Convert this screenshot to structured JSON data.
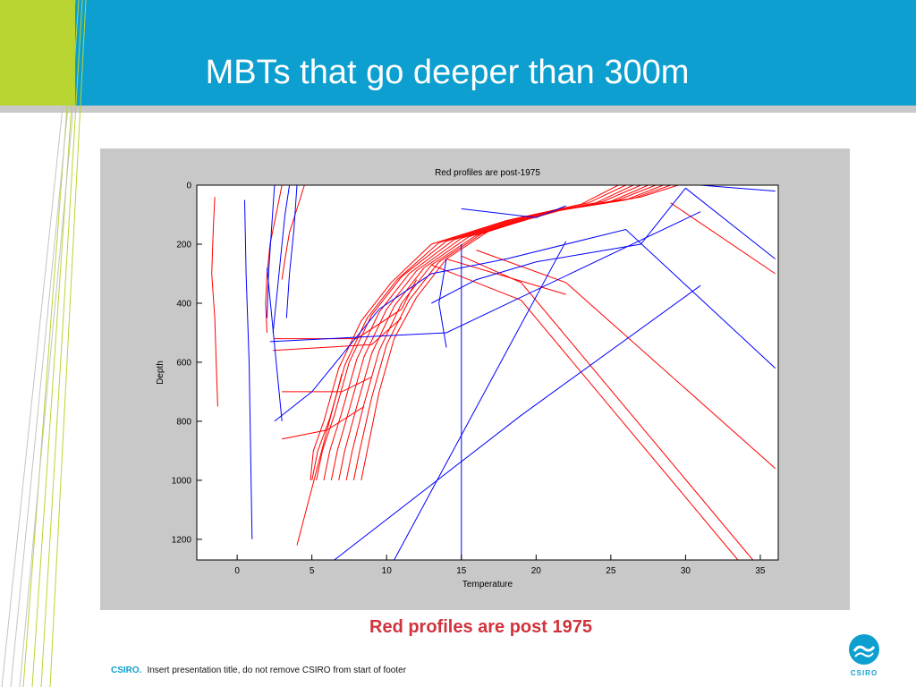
{
  "slide": {
    "title": "MBTs that go deeper than 300m",
    "caption": "Red profiles are post 1975",
    "footer_brand": "CSIRO.",
    "footer_text": "Insert presentation title, do not remove CSIRO from start of footer",
    "logo_text": "CSIRO"
  },
  "colors": {
    "header": "#0d9fcf",
    "accent": "#b9d531",
    "post1975": "#ff0000",
    "pre1975": "#0000ff",
    "caption": "#d0333b"
  },
  "chart_data": {
    "type": "line",
    "title": "Red profiles are post-1975",
    "xlabel": "Temperature",
    "ylabel": "Depth",
    "xlim": [
      -2.7,
      36.2
    ],
    "ylim": [
      1270,
      0
    ],
    "y_reversed": true,
    "xticks": [
      0,
      5,
      10,
      15,
      20,
      25,
      30,
      35
    ],
    "yticks": [
      0,
      200,
      400,
      600,
      800,
      1000,
      1200
    ],
    "grid": false,
    "series": [
      {
        "color": "red",
        "profiles": [
          [
            [
              29.5,
              0
            ],
            [
              27,
              40
            ],
            [
              22,
              80
            ],
            [
              17,
              150
            ],
            [
              14,
              250
            ],
            [
              12,
              380
            ],
            [
              10.5,
              520
            ],
            [
              9.5,
              700
            ],
            [
              8.7,
              900
            ],
            [
              8.3,
              1000
            ]
          ],
          [
            [
              29,
              0
            ],
            [
              26.5,
              45
            ],
            [
              21.5,
              85
            ],
            [
              16.5,
              160
            ],
            [
              13.5,
              260
            ],
            [
              11.5,
              390
            ],
            [
              10,
              540
            ],
            [
              9,
              720
            ],
            [
              8.2,
              900
            ],
            [
              7.8,
              1000
            ]
          ],
          [
            [
              28.5,
              0
            ],
            [
              26,
              50
            ],
            [
              21,
              90
            ],
            [
              16,
              170
            ],
            [
              13,
              270
            ],
            [
              11,
              400
            ],
            [
              9.5,
              560
            ],
            [
              8.5,
              740
            ],
            [
              7.7,
              900
            ],
            [
              7.3,
              1000
            ]
          ],
          [
            [
              28,
              0
            ],
            [
              25.5,
              50
            ],
            [
              20.5,
              95
            ],
            [
              15.5,
              175
            ],
            [
              12.5,
              280
            ],
            [
              10.5,
              410
            ],
            [
              9,
              570
            ],
            [
              8,
              750
            ],
            [
              7.2,
              900
            ],
            [
              6.8,
              1000
            ]
          ],
          [
            [
              27.5,
              0
            ],
            [
              25,
              55
            ],
            [
              20,
              100
            ],
            [
              15,
              180
            ],
            [
              12,
              290
            ],
            [
              10,
              420
            ],
            [
              8.5,
              580
            ],
            [
              7.5,
              760
            ],
            [
              6.7,
              900
            ],
            [
              6.3,
              1000
            ]
          ],
          [
            [
              27,
              0
            ],
            [
              24.5,
              55
            ],
            [
              19.5,
              105
            ],
            [
              14.5,
              185
            ],
            [
              11.5,
              300
            ],
            [
              9.5,
              430
            ],
            [
              8,
              590
            ],
            [
              7,
              770
            ],
            [
              6.2,
              900
            ],
            [
              5.8,
              1000
            ]
          ],
          [
            [
              26.5,
              0
            ],
            [
              24,
              60
            ],
            [
              19,
              110
            ],
            [
              14,
              190
            ],
            [
              11,
              310
            ],
            [
              9,
              440
            ],
            [
              7.5,
              600
            ],
            [
              6.5,
              780
            ],
            [
              5.7,
              900
            ],
            [
              5.3,
              1000
            ]
          ],
          [
            [
              26,
              0
            ],
            [
              23.5,
              60
            ],
            [
              18.5,
              115
            ],
            [
              13.5,
              195
            ],
            [
              10.7,
              320
            ],
            [
              8.7,
              450
            ],
            [
              7.2,
              610
            ],
            [
              6.2,
              790
            ],
            [
              5.4,
              900
            ],
            [
              5,
              1000
            ]
          ],
          [
            [
              25.5,
              0
            ],
            [
              23,
              65
            ],
            [
              18,
              120
            ],
            [
              13,
              200
            ],
            [
              10.3,
              330
            ],
            [
              8.3,
              460
            ],
            [
              6.8,
              620
            ],
            [
              5.8,
              800
            ],
            [
              5.1,
              900
            ],
            [
              4.9,
              1000
            ]
          ],
          [
            [
              3,
              0
            ],
            [
              2.6,
              100
            ],
            [
              2.2,
              200
            ],
            [
              2,
              300
            ],
            [
              1.9,
              400
            ],
            [
              2,
              500
            ]
          ],
          [
            [
              4.5,
              0
            ],
            [
              4,
              80
            ],
            [
              3.5,
              160
            ],
            [
              3.2,
              250
            ],
            [
              3,
              320
            ]
          ],
          [
            [
              -1.5,
              40
            ],
            [
              -1.6,
              150
            ],
            [
              -1.7,
              300
            ],
            [
              -1.5,
              450
            ],
            [
              -1.4,
              600
            ],
            [
              -1.3,
              750
            ]
          ],
          [
            [
              12,
              320
            ],
            [
              11,
              420
            ],
            [
              8,
              520
            ],
            [
              2.5,
              520
            ]
          ],
          [
            [
              11,
              450
            ],
            [
              9,
              540
            ],
            [
              2.4,
              560
            ]
          ],
          [
            [
              8.5,
              750
            ],
            [
              6,
              830
            ],
            [
              3,
              860
            ]
          ],
          [
            [
              9,
              650
            ],
            [
              7,
              700
            ],
            [
              3,
              700
            ]
          ],
          [
            [
              29,
              60
            ],
            [
              36,
              300
            ]
          ],
          [
            [
              15,
              240
            ],
            [
              19,
              330
            ],
            [
              34.5,
              1270
            ]
          ],
          [
            [
              13,
              270
            ],
            [
              19,
              390
            ],
            [
              33.5,
              1270
            ]
          ],
          [
            [
              16,
              220
            ],
            [
              22,
              330
            ],
            [
              36,
              960
            ]
          ],
          [
            [
              14,
              250
            ],
            [
              22,
              370
            ]
          ],
          [
            [
              7,
              640
            ],
            [
              4,
              1220
            ]
          ]
        ]
      },
      {
        "color": "blue",
        "profiles": [
          [
            [
              3.5,
              0
            ],
            [
              3.2,
              100
            ],
            [
              3,
              200
            ],
            [
              2.8,
              300
            ],
            [
              2.6,
              400
            ],
            [
              2.4,
              500
            ]
          ],
          [
            [
              2.5,
              0
            ],
            [
              2.3,
              150
            ],
            [
              2.1,
              300
            ],
            [
              2,
              450
            ]
          ],
          [
            [
              4,
              0
            ],
            [
              3.8,
              150
            ],
            [
              3.5,
              300
            ],
            [
              3.3,
              450
            ]
          ],
          [
            [
              0.5,
              50
            ],
            [
              0.6,
              300
            ],
            [
              0.8,
              600
            ],
            [
              1,
              1200
            ]
          ],
          [
            [
              30,
              10
            ],
            [
              27,
              200
            ],
            [
              20,
              260
            ],
            [
              16,
              320
            ],
            [
              13,
              400
            ]
          ],
          [
            [
              31,
              90
            ],
            [
              14,
              500
            ],
            [
              2.2,
              530
            ]
          ],
          [
            [
              30,
              10
            ],
            [
              36,
              250
            ]
          ],
          [
            [
              36,
              620
            ],
            [
              26,
              150
            ],
            [
              18,
              250
            ],
            [
              13,
              300
            ],
            [
              9.5,
              420
            ],
            [
              5,
              700
            ],
            [
              2.5,
              800
            ]
          ],
          [
            [
              6.5,
              1270
            ],
            [
              19,
              780
            ],
            [
              31,
              340
            ]
          ],
          [
            [
              10.5,
              1270
            ],
            [
              22,
              190
            ]
          ],
          [
            [
              15,
              1270
            ],
            [
              15,
              200
            ]
          ],
          [
            [
              14,
              250
            ],
            [
              13.5,
              400
            ],
            [
              14,
              550
            ]
          ],
          [
            [
              31,
              0
            ],
            [
              36,
              20
            ]
          ],
          [
            [
              2,
              280
            ],
            [
              3,
              800
            ]
          ],
          [
            [
              15,
              80
            ],
            [
              20,
              110
            ],
            [
              22,
              70
            ]
          ]
        ]
      }
    ]
  }
}
